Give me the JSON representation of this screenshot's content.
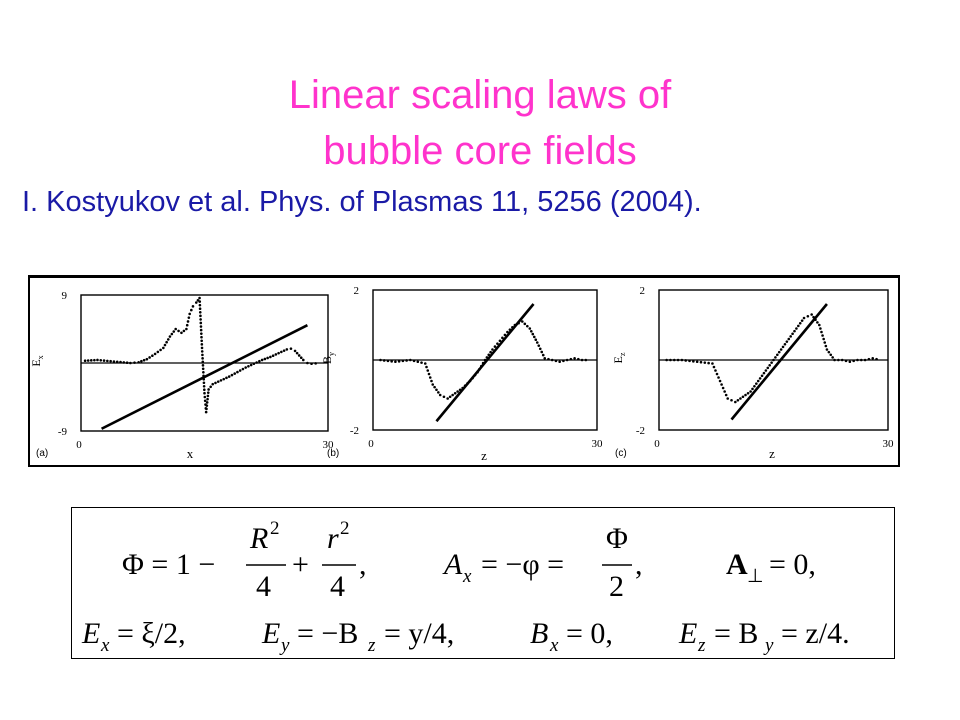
{
  "title": {
    "line1": "Linear scaling laws of",
    "line2": "bubble core fields"
  },
  "citation": "I. Kostyukov et al. Phys. of Plasmas 11, 5256 (2004).",
  "colors": {
    "title": "#ff33cc",
    "citation": "#1a1aa6"
  },
  "chart_data": [
    {
      "type": "scatter",
      "panel_label": "(a)",
      "xlabel": "x",
      "ylabel": "E",
      "ylabel_sub": "x",
      "x_ticks": [
        "0",
        "30"
      ],
      "y_ticks": [
        "9",
        "-9"
      ],
      "xlim": [
        0,
        30
      ],
      "ylim": [
        -9,
        9
      ],
      "series": [
        {
          "style": "dotted",
          "x": [
            0.5,
            2,
            4,
            6,
            7,
            8,
            9,
            10,
            10.8,
            11.5,
            12.2,
            12.8,
            13.2,
            13.6,
            14,
            14.4,
            14.7,
            15.0,
            15.2,
            15.5,
            16,
            17,
            18,
            19,
            20,
            21,
            22,
            23,
            24,
            25,
            25.5,
            26,
            26.5,
            27,
            27.5,
            28,
            29
          ],
          "y": [
            0.3,
            0.4,
            0.2,
            0.0,
            0.1,
            0.5,
            1.2,
            2.0,
            3.5,
            4.5,
            4.0,
            4.5,
            6.5,
            7.5,
            8.0,
            8.6,
            2.0,
            -4.0,
            -6.5,
            -3.5,
            -2.8,
            -2.3,
            -1.8,
            -1.2,
            -0.6,
            -0.1,
            0.4,
            0.8,
            1.3,
            1.8,
            1.9,
            1.6,
            1.0,
            0.4,
            0.0,
            -0.1,
            0.0
          ]
        },
        {
          "style": "solid",
          "x": [
            2.5,
            27.5
          ],
          "y": [
            -8.7,
            5.0
          ]
        }
      ]
    },
    {
      "type": "scatter",
      "panel_label": "(b)",
      "xlabel": "z",
      "ylabel": "B",
      "ylabel_sub": "y",
      "x_ticks": [
        "0",
        "30"
      ],
      "y_ticks": [
        "2",
        "-2"
      ],
      "xlim": [
        0,
        30
      ],
      "ylim": [
        -2,
        2
      ],
      "series": [
        {
          "style": "dotted",
          "x": [
            1,
            3,
            5,
            7,
            8,
            9,
            10,
            11,
            12,
            13,
            14,
            15,
            16,
            17,
            18,
            19,
            20,
            21,
            22,
            23,
            24,
            25,
            26,
            27,
            28,
            29
          ],
          "y": [
            0.0,
            -0.05,
            0.0,
            -0.1,
            -0.7,
            -1.0,
            -1.1,
            -0.95,
            -0.8,
            -0.6,
            -0.35,
            0.0,
            0.3,
            0.55,
            0.8,
            1.0,
            1.1,
            0.9,
            0.5,
            0.05,
            0.0,
            -0.05,
            0.0,
            0.05,
            0.0,
            0.0
          ]
        },
        {
          "style": "solid",
          "x": [
            8.5,
            21.5
          ],
          "y": [
            -1.75,
            1.6
          ]
        }
      ]
    },
    {
      "type": "scatter",
      "panel_label": "(c)",
      "xlabel": "z",
      "ylabel": "E",
      "ylabel_sub": "z",
      "x_ticks": [
        "0",
        "30"
      ],
      "y_ticks": [
        "2",
        "-2"
      ],
      "xlim": [
        0,
        30
      ],
      "ylim": [
        -2,
        2
      ],
      "series": [
        {
          "style": "dotted",
          "x": [
            1,
            3,
            5,
            7,
            8,
            9,
            10,
            11,
            12,
            13,
            14,
            15,
            16,
            17,
            18,
            19,
            20,
            21,
            22,
            23,
            24,
            25,
            26,
            27,
            28,
            29
          ],
          "y": [
            0.0,
            0.0,
            -0.05,
            -0.1,
            -0.6,
            -1.1,
            -1.2,
            -1.05,
            -0.9,
            -0.6,
            -0.3,
            0.0,
            0.3,
            0.6,
            0.9,
            1.2,
            1.3,
            1.0,
            0.3,
            0.0,
            0.0,
            -0.05,
            0.0,
            0.0,
            0.05,
            0.0
          ]
        },
        {
          "style": "solid",
          "x": [
            9.5,
            22
          ],
          "y": [
            -1.7,
            1.6
          ]
        }
      ]
    }
  ],
  "equations": {
    "row1": {
      "phi_lhs": "Φ = 1 −",
      "R2": "R",
      "exp2": "2",
      "four": "4",
      "plus": "+",
      "r2": "r",
      "comma": ",",
      "ax_lhs": "A",
      "ax_sub": "x",
      "ax_mid": "= −φ =",
      "phi": "Φ",
      "two": "2",
      "aperp": "A",
      "perp": "⊥",
      "aperp_rhs": "= 0,"
    },
    "row2": {
      "e1": "E",
      "s1": "x",
      "r1": "= ξ/2,",
      "e2": "E",
      "s2": "y",
      "m2": "= −B",
      "s2b": "z",
      "r2": "= y/4,",
      "e3": "B",
      "s3": "x",
      "r3": "= 0,",
      "e4": "E",
      "s4": "z",
      "m4": "= B",
      "s4b": "y",
      "r4": "= z/4."
    }
  }
}
